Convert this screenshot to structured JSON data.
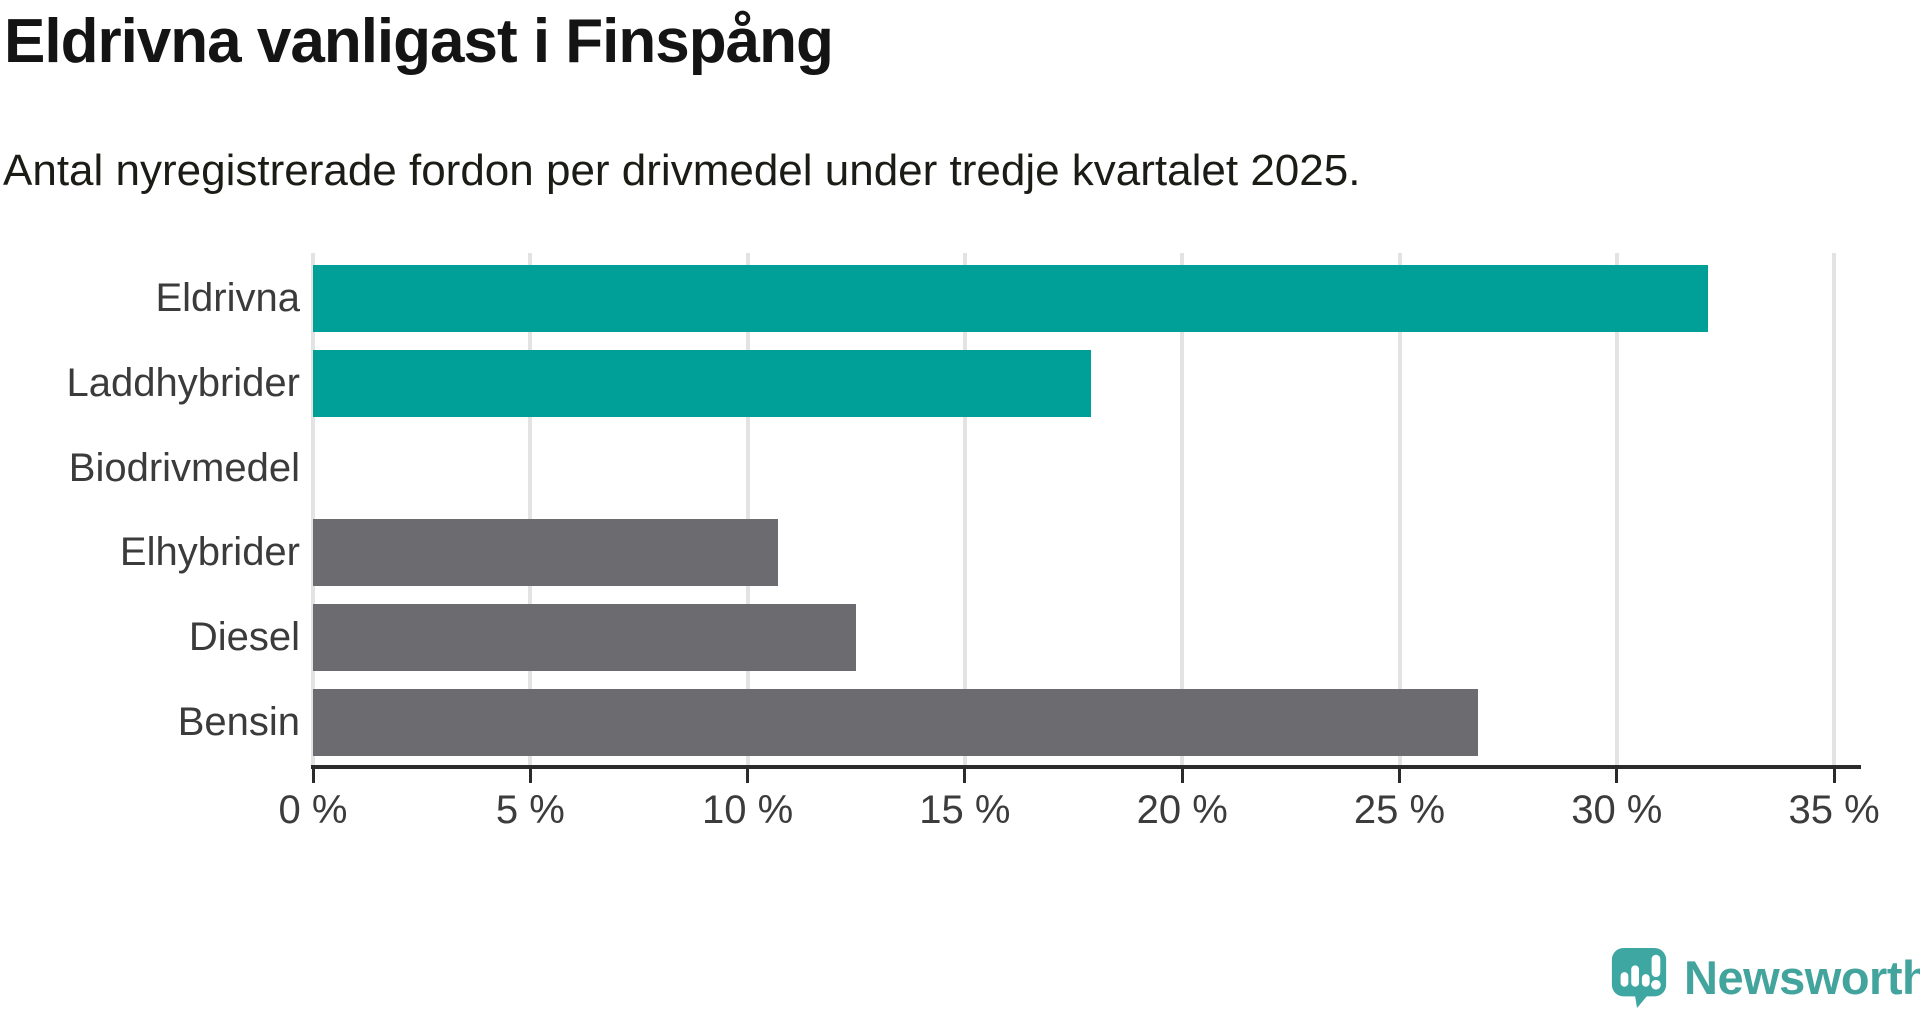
{
  "header": {
    "title": "Eldrivna vanligast i Finspång",
    "subtitle": "Antal nyregistrerade fordon per drivmedel under tredje kvartalet 2025."
  },
  "chart_data": {
    "type": "bar",
    "orientation": "horizontal",
    "title": "Eldrivna vanligast i Finspång",
    "subtitle": "Antal nyregistrerade fordon per drivmedel under tredje kvartalet 2025.",
    "categories": [
      "Eldrivna",
      "Laddhybrider",
      "Biodrivmedel",
      "Elhybrider",
      "Diesel",
      "Bensin"
    ],
    "values": [
      32.1,
      17.9,
      0,
      10.7,
      12.5,
      26.8
    ],
    "unit": "%",
    "colors": [
      "#00A099",
      "#00A099",
      "#00A099",
      "#6C6C70",
      "#6C6C70",
      "#6C6C70"
    ],
    "highlight_color": "#00A099",
    "default_color": "#6C6C70",
    "xlim": [
      0,
      35
    ],
    "x_tick_labels": [
      "0 %",
      "5 %",
      "10 %",
      "15 %",
      "20 %",
      "25 %",
      "30 %",
      "35 %"
    ],
    "grid": true,
    "gridline_color": "#E3E3E3",
    "axis_color": "#2B2B2B",
    "legend": "none"
  },
  "footer": {
    "brand": "Newsworthy",
    "brand_color": "#43A49D",
    "icon": "newsworthy-speech-bubble-chart-icon",
    "icon_color": "#3FA7A1"
  }
}
